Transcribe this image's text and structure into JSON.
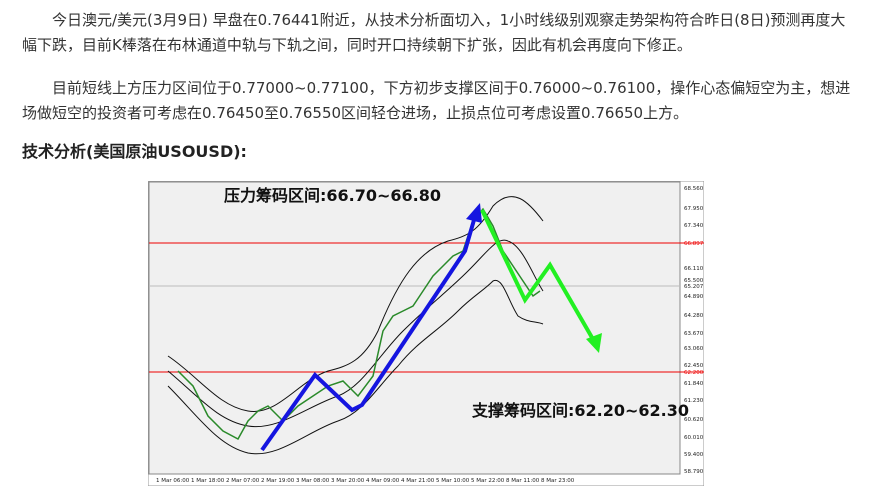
{
  "paragraphs": [
    "今日澳元/美元(3月9日) 早盘在0.76441附近，从技术分析面切入，1小时线级别观察走势架构符合昨日(8日)预测再度大幅下跌，目前K棒落在布林通道中轨与下轨之间，同时开口持续朝下扩张，因此有机会再度向下修正。",
    "目前短线上方压力区间位于0.77000~0.77100，下方初步支撑区间于0.76000~0.76100，操作心态偏短空为主，想进场做短空的投资者可考虑在0.76450至0.76550区间轻仓进场，止损点位可考虑设置0.76650上方。"
  ],
  "heading": "技术分析(美国原油USOUSD):",
  "chart": {
    "resistance_note": "压力筹码区间:66.70~66.80",
    "support_note": "支撑筹码区间:62.20~62.30",
    "price_labels": [
      "68.560",
      "67.950",
      "67.340",
      "66.897",
      "66.110",
      "65.500",
      "65.207",
      "64.890",
      "64.280",
      "63.670",
      "63.060",
      "62.450",
      "62.200",
      "61.840",
      "61.230",
      "60.620",
      "60.010",
      "59.400",
      "58.790"
    ],
    "time_labels": [
      "1 Mar 06:00",
      "1 Mar 18:00",
      "2 Mar 07:00",
      "2 Mar 19:00",
      "3 Mar 08:00",
      "3 Mar 20:00",
      "4 Mar 09:00",
      "4 Mar 21:00",
      "5 Mar 10:00",
      "5 Mar 22:00",
      "8 Mar 11:00",
      "8 Mar 23:00"
    ]
  }
}
